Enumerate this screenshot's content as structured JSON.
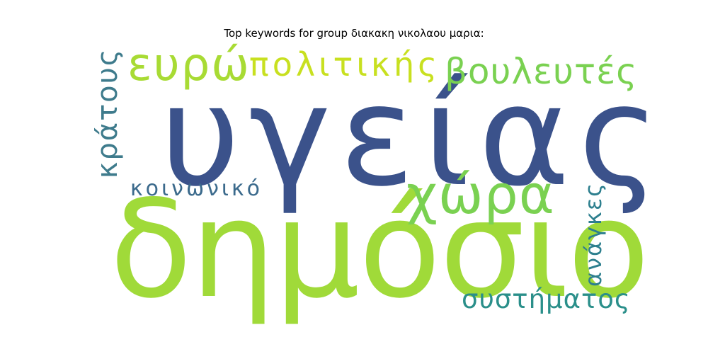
{
  "title": "Top keywords for group διακακη νικολαου μαρια:",
  "words": [
    {
      "key": "ugeias",
      "text": "υγείας",
      "color": "#3b528b"
    },
    {
      "key": "dimosio",
      "text": "δημόσιο",
      "color": "#a0da39"
    },
    {
      "key": "evro",
      "text": "ευρώ",
      "color": "#a8db34"
    },
    {
      "key": "politikis",
      "text": "πολιτικής",
      "color": "#c8e020"
    },
    {
      "key": "vouleutes",
      "text": "βουλευτές",
      "color": "#7ad151"
    },
    {
      "key": "xora",
      "text": "χώρα",
      "color": "#7ad151"
    },
    {
      "key": "kratous",
      "text": "κράτους",
      "color": "#3e7b8c"
    },
    {
      "key": "koinoniko",
      "text": "κοινωνικό",
      "color": "#3b6a8c"
    },
    {
      "key": "anagkes",
      "text": "ανάγκες",
      "color": "#2d7f8e"
    },
    {
      "key": "systimatos",
      "text": "συστήματος",
      "color": "#2a8f8a"
    }
  ]
}
